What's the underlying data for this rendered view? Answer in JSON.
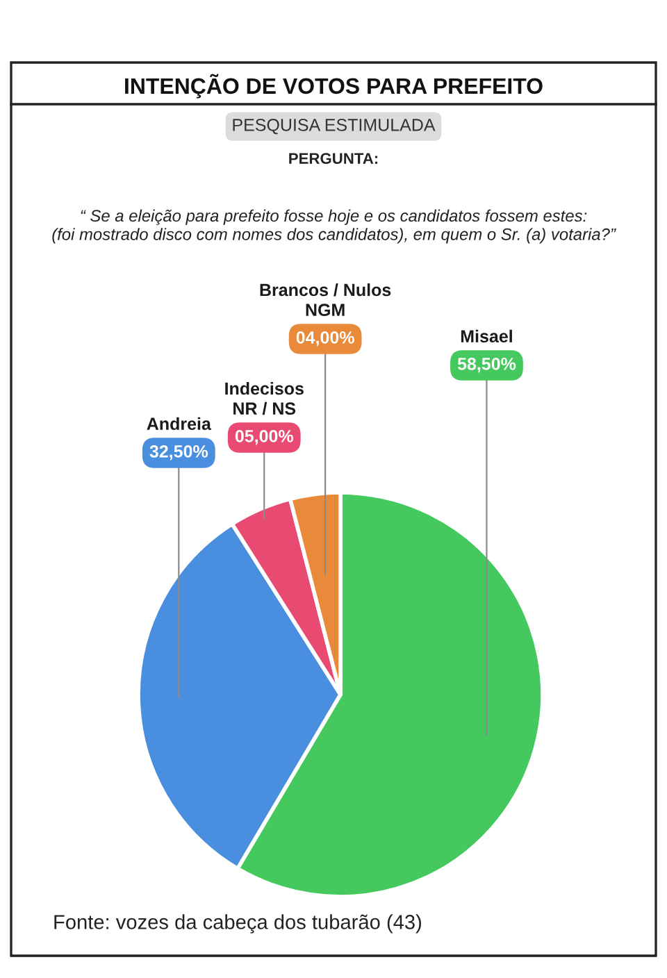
{
  "chart_data": {
    "type": "pie",
    "title": "INTENÇÃO DE VOTOS PARA PREFEITO",
    "subtitle": "PESQUISA ESTIMULADA",
    "categories": [
      "Misael",
      "Andreia",
      "Indecisos\nNR / NS",
      "Brancos / Nulos\nNGM"
    ],
    "values": [
      58.5,
      32.5,
      5,
      4
    ],
    "value_labels": [
      "58,50%",
      "32,50%",
      "05,00%",
      "04,00%"
    ],
    "colors": [
      "#45c95e",
      "#4a8fdf",
      "#e84a72",
      "#e9893a"
    ],
    "annotations": [
      "PERGUNTA:",
      "“ Se a eleição para prefeito fosse hoje e os candidatos fossem estes:\n(foi mostrado disco com nomes dos candidatos), em quem o Sr. (a) votaria?”",
      "Fonte: vozes da cabeça dos tubarão (43)"
    ]
  }
}
